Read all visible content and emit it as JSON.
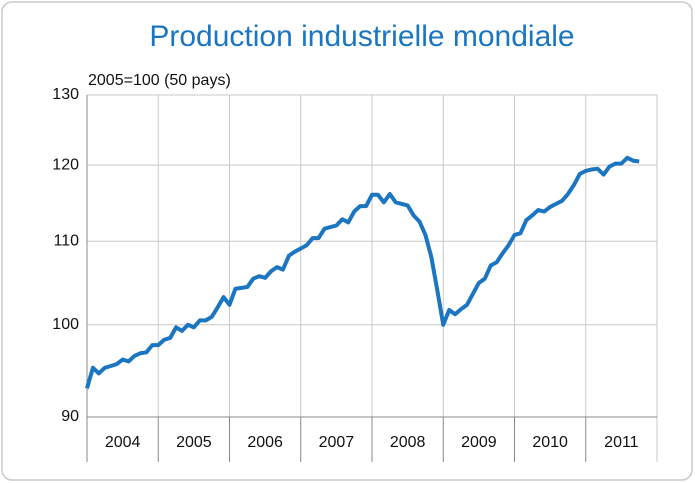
{
  "chart_data": {
    "type": "line",
    "title": "Production industrielle mondiale",
    "subtitle": "2005=100 (50 pays)",
    "categories": [
      "2004",
      null,
      null,
      null,
      null,
      null,
      null,
      null,
      null,
      null,
      null,
      null,
      "2005",
      null,
      null,
      null,
      null,
      null,
      null,
      null,
      null,
      null,
      null,
      null,
      "2006",
      null,
      null,
      null,
      null,
      null,
      null,
      null,
      null,
      null,
      null,
      null,
      "2007",
      null,
      null,
      null,
      null,
      null,
      null,
      null,
      null,
      null,
      null,
      null,
      "2008",
      null,
      null,
      null,
      null,
      null,
      null,
      null,
      null,
      null,
      null,
      null,
      "2009",
      null,
      null,
      null,
      null,
      null,
      null,
      null,
      null,
      null,
      null,
      null,
      "2010",
      null,
      null,
      null,
      null,
      null,
      null,
      null,
      null,
      null,
      null,
      null,
      "2011",
      null,
      null,
      null,
      null,
      null,
      null,
      null,
      null,
      null
    ],
    "values": [
      93.0,
      95.2,
      94.6,
      95.2,
      95.4,
      95.6,
      96.1,
      95.9,
      96.5,
      96.8,
      96.9,
      97.7,
      97.7,
      98.3,
      98.5,
      99.7,
      99.3,
      100.0,
      99.7,
      100.5,
      100.5,
      100.9,
      102.0,
      103.2,
      102.3,
      104.2,
      104.3,
      104.4,
      105.4,
      105.7,
      105.5,
      106.3,
      106.8,
      106.5,
      108.2,
      108.7,
      109.1,
      109.5,
      110.4,
      110.4,
      111.6,
      111.8,
      112.0,
      112.8,
      112.4,
      113.8,
      114.5,
      114.5,
      116.0,
      116.0,
      115.0,
      116.1,
      115.0,
      114.8,
      114.6,
      113.3,
      112.5,
      110.8,
      108.0,
      104.0,
      100.0,
      101.7,
      101.2,
      101.8,
      102.3,
      103.6,
      104.9,
      105.4,
      107.0,
      107.4,
      108.5,
      109.5,
      110.8,
      111.0,
      112.7,
      113.3,
      114.0,
      113.8,
      114.4,
      114.8,
      115.2,
      116.1,
      117.3,
      118.8,
      119.2,
      119.4,
      119.5,
      118.7,
      119.8,
      120.2,
      120.2,
      121.0,
      120.6,
      120.5
    ],
    "color": "#1b75c0",
    "ylim": [
      90,
      130
    ],
    "yticks": [
      90,
      100,
      110,
      120,
      130
    ],
    "log_scale": true,
    "grid": true
  }
}
